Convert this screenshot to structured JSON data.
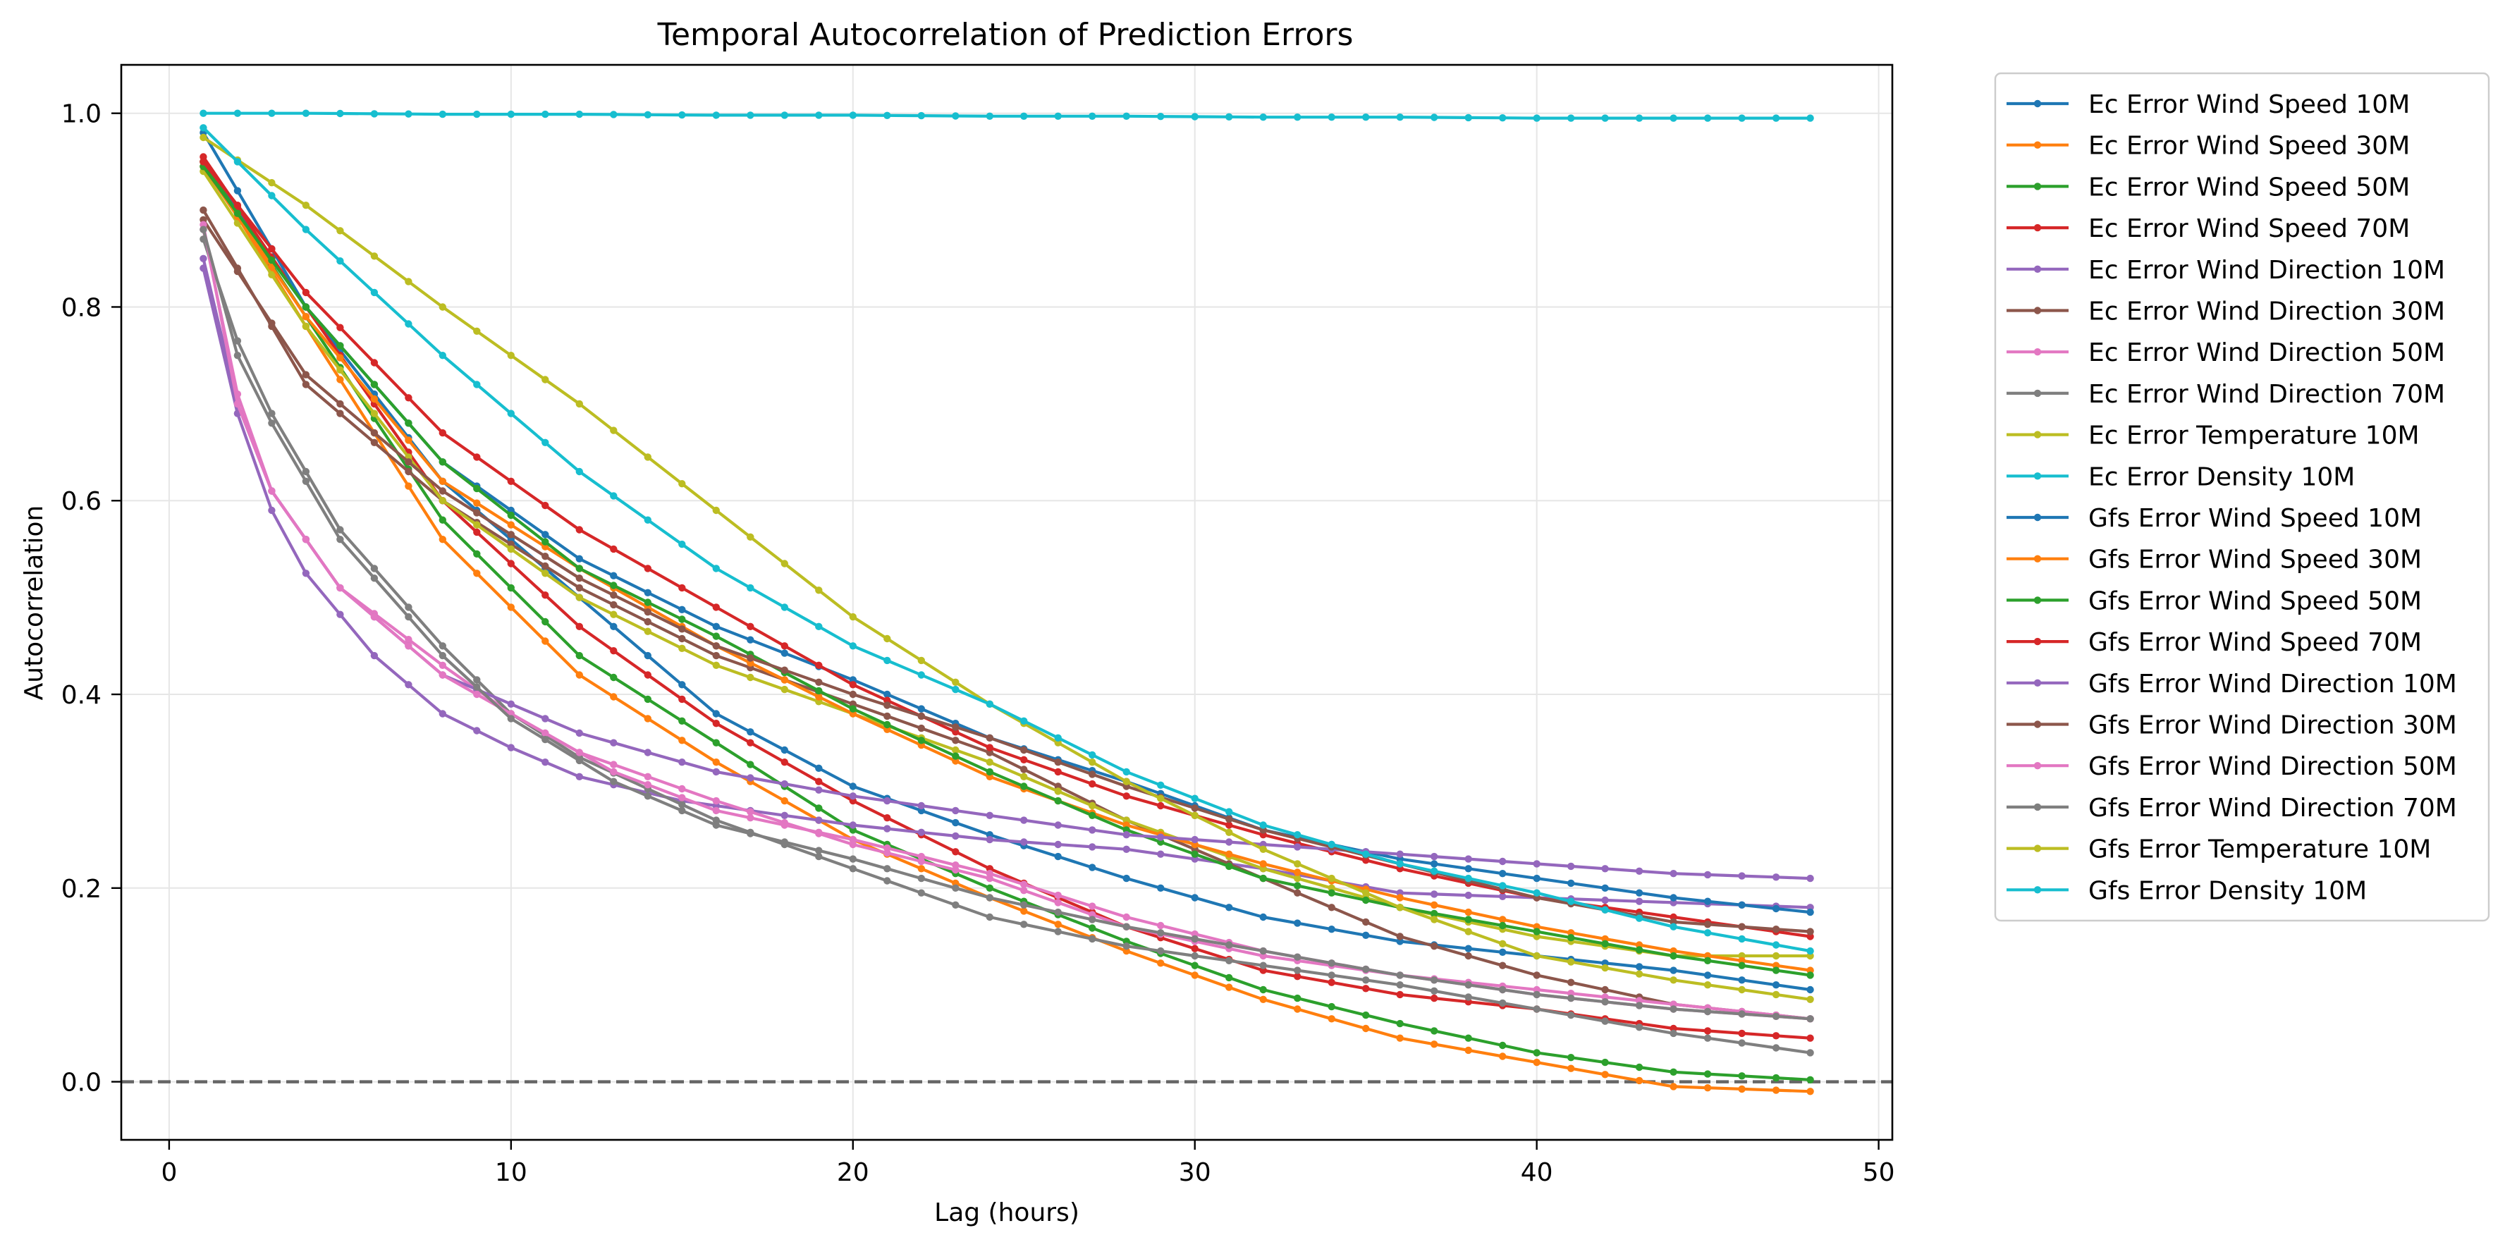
{
  "chart_data": {
    "type": "line",
    "title": "Temporal Autocorrelation of Prediction Errors",
    "xlabel": "Lag (hours)",
    "ylabel": "Autocorrelation",
    "xlim": [
      -1.4,
      50.4
    ],
    "ylim": [
      -0.06,
      1.05
    ],
    "xticks": [
      0,
      10,
      20,
      30,
      40,
      50
    ],
    "yticks": [
      0.0,
      0.2,
      0.4,
      0.6,
      0.8,
      1.0
    ],
    "xtick_labels": [
      "0",
      "10",
      "20",
      "30",
      "40",
      "50"
    ],
    "ytick_labels": [
      "0.0",
      "0.2",
      "0.4",
      "0.6",
      "0.8",
      "1.0"
    ],
    "grid": true,
    "legend_position": "outside-right",
    "reference_line": {
      "y": 0.0,
      "style": "dashed",
      "color": "#666666"
    },
    "x": [
      1,
      2,
      3,
      4,
      5,
      6,
      7,
      8,
      9,
      10,
      11,
      12,
      13,
      14,
      15,
      16,
      17,
      18,
      19,
      20,
      21,
      22,
      23,
      24,
      25,
      26,
      27,
      28,
      29,
      30,
      31,
      32,
      33,
      34,
      35,
      36,
      37,
      38,
      39,
      40,
      41,
      42,
      43,
      44,
      45,
      46,
      47,
      48
    ],
    "series": [
      {
        "name": "Ec Error Wind Speed 10M",
        "color": "#1f77b4",
        "anchors": [
          [
            1,
            0.95
          ],
          [
            4,
            0.8
          ],
          [
            8,
            0.62
          ],
          [
            12,
            0.5
          ],
          [
            16,
            0.38
          ],
          [
            20,
            0.305
          ],
          [
            24,
            0.255
          ],
          [
            28,
            0.21
          ],
          [
            32,
            0.17
          ],
          [
            36,
            0.145
          ],
          [
            40,
            0.13
          ],
          [
            44,
            0.115
          ],
          [
            48,
            0.095
          ]
        ]
      },
      {
        "name": "Ec Error Wind Speed 30M",
        "color": "#ff7f0e",
        "anchors": [
          [
            1,
            0.95
          ],
          [
            4,
            0.78
          ],
          [
            8,
            0.56
          ],
          [
            12,
            0.42
          ],
          [
            16,
            0.33
          ],
          [
            20,
            0.25
          ],
          [
            24,
            0.19
          ],
          [
            28,
            0.135
          ],
          [
            32,
            0.085
          ],
          [
            36,
            0.045
          ],
          [
            40,
            0.02
          ],
          [
            44,
            -0.005
          ],
          [
            48,
            -0.01
          ]
        ]
      },
      {
        "name": "Ec Error Wind Speed 50M",
        "color": "#2ca02c",
        "anchors": [
          [
            1,
            0.95
          ],
          [
            4,
            0.79
          ],
          [
            8,
            0.58
          ],
          [
            12,
            0.44
          ],
          [
            16,
            0.35
          ],
          [
            20,
            0.26
          ],
          [
            24,
            0.2
          ],
          [
            28,
            0.145
          ],
          [
            32,
            0.095
          ],
          [
            36,
            0.06
          ],
          [
            40,
            0.03
          ],
          [
            44,
            0.01
          ],
          [
            48,
            0.002
          ]
        ]
      },
      {
        "name": "Ec Error Wind Speed 70M",
        "color": "#d62728",
        "anchors": [
          [
            1,
            0.955
          ],
          [
            4,
            0.8
          ],
          [
            8,
            0.6
          ],
          [
            12,
            0.47
          ],
          [
            16,
            0.37
          ],
          [
            20,
            0.29
          ],
          [
            24,
            0.22
          ],
          [
            28,
            0.16
          ],
          [
            32,
            0.115
          ],
          [
            36,
            0.09
          ],
          [
            40,
            0.075
          ],
          [
            44,
            0.055
          ],
          [
            48,
            0.045
          ]
        ]
      },
      {
        "name": "Ec Error Wind Direction 10M",
        "color": "#9467bd",
        "anchors": [
          [
            1,
            0.84
          ],
          [
            2,
            0.69
          ],
          [
            3,
            0.59
          ],
          [
            4,
            0.525
          ],
          [
            6,
            0.44
          ],
          [
            8,
            0.38
          ],
          [
            10,
            0.345
          ],
          [
            12,
            0.315
          ],
          [
            15,
            0.29
          ],
          [
            20,
            0.265
          ],
          [
            24,
            0.25
          ],
          [
            28,
            0.24
          ],
          [
            32,
            0.22
          ],
          [
            36,
            0.195
          ],
          [
            40,
            0.19
          ],
          [
            44,
            0.185
          ],
          [
            48,
            0.18
          ]
        ]
      },
      {
        "name": "Ec Error Wind Direction 30M",
        "color": "#8c564b",
        "anchors": [
          [
            1,
            0.9
          ],
          [
            4,
            0.72
          ],
          [
            8,
            0.6
          ],
          [
            12,
            0.51
          ],
          [
            16,
            0.44
          ],
          [
            20,
            0.39
          ],
          [
            24,
            0.34
          ],
          [
            28,
            0.27
          ],
          [
            32,
            0.21
          ],
          [
            36,
            0.15
          ],
          [
            40,
            0.11
          ],
          [
            44,
            0.08
          ],
          [
            48,
            0.065
          ]
        ]
      },
      {
        "name": "Ec Error Wind Direction 50M",
        "color": "#e377c2",
        "anchors": [
          [
            1,
            0.88
          ],
          [
            2,
            0.71
          ],
          [
            3,
            0.61
          ],
          [
            5,
            0.51
          ],
          [
            8,
            0.43
          ],
          [
            10,
            0.38
          ],
          [
            12,
            0.34
          ],
          [
            16,
            0.29
          ],
          [
            20,
            0.245
          ],
          [
            24,
            0.21
          ],
          [
            28,
            0.16
          ],
          [
            32,
            0.13
          ],
          [
            36,
            0.11
          ],
          [
            40,
            0.095
          ],
          [
            44,
            0.08
          ],
          [
            48,
            0.065
          ]
        ]
      },
      {
        "name": "Ec Error Wind Direction 70M",
        "color": "#7f7f7f",
        "anchors": [
          [
            1,
            0.87
          ],
          [
            2,
            0.765
          ],
          [
            3,
            0.69
          ],
          [
            5,
            0.57
          ],
          [
            8,
            0.45
          ],
          [
            10,
            0.38
          ],
          [
            12,
            0.335
          ],
          [
            16,
            0.27
          ],
          [
            20,
            0.22
          ],
          [
            24,
            0.17
          ],
          [
            28,
            0.14
          ],
          [
            32,
            0.12
          ],
          [
            36,
            0.1
          ],
          [
            40,
            0.075
          ],
          [
            44,
            0.05
          ],
          [
            48,
            0.03
          ]
        ]
      },
      {
        "name": "Ec Error Temperature 10M",
        "color": "#bcbd22",
        "anchors": [
          [
            1,
            0.94
          ],
          [
            4,
            0.78
          ],
          [
            8,
            0.6
          ],
          [
            12,
            0.5
          ],
          [
            16,
            0.43
          ],
          [
            20,
            0.38
          ],
          [
            24,
            0.33
          ],
          [
            28,
            0.27
          ],
          [
            32,
            0.22
          ],
          [
            36,
            0.18
          ],
          [
            40,
            0.15
          ],
          [
            44,
            0.13
          ],
          [
            48,
            0.13
          ]
        ]
      },
      {
        "name": "Ec Error Density 10M",
        "color": "#17becf",
        "anchors": [
          [
            1,
            1.0
          ],
          [
            4,
            1.0
          ],
          [
            8,
            0.999
          ],
          [
            12,
            0.999
          ],
          [
            16,
            0.998
          ],
          [
            20,
            0.998
          ],
          [
            24,
            0.997
          ],
          [
            28,
            0.997
          ],
          [
            32,
            0.996
          ],
          [
            36,
            0.996
          ],
          [
            40,
            0.995
          ],
          [
            44,
            0.995
          ],
          [
            48,
            0.995
          ]
        ]
      },
      {
        "name": "Gfs Error Wind Speed 10M",
        "color": "#1f77b4",
        "anchors": [
          [
            1,
            0.98
          ],
          [
            4,
            0.8
          ],
          [
            8,
            0.64
          ],
          [
            12,
            0.54
          ],
          [
            16,
            0.47
          ],
          [
            20,
            0.415
          ],
          [
            24,
            0.355
          ],
          [
            28,
            0.31
          ],
          [
            32,
            0.26
          ],
          [
            36,
            0.23
          ],
          [
            40,
            0.21
          ],
          [
            44,
            0.19
          ],
          [
            48,
            0.175
          ]
        ]
      },
      {
        "name": "Gfs Error Wind Speed 30M",
        "color": "#ff7f0e",
        "anchors": [
          [
            1,
            0.945
          ],
          [
            4,
            0.79
          ],
          [
            8,
            0.62
          ],
          [
            12,
            0.53
          ],
          [
            16,
            0.45
          ],
          [
            20,
            0.38
          ],
          [
            24,
            0.315
          ],
          [
            28,
            0.265
          ],
          [
            32,
            0.225
          ],
          [
            36,
            0.19
          ],
          [
            40,
            0.16
          ],
          [
            44,
            0.135
          ],
          [
            48,
            0.115
          ]
        ]
      },
      {
        "name": "Gfs Error Wind Speed 50M",
        "color": "#2ca02c",
        "anchors": [
          [
            1,
            0.945
          ],
          [
            4,
            0.8
          ],
          [
            8,
            0.64
          ],
          [
            12,
            0.53
          ],
          [
            16,
            0.46
          ],
          [
            20,
            0.385
          ],
          [
            24,
            0.32
          ],
          [
            28,
            0.26
          ],
          [
            32,
            0.21
          ],
          [
            36,
            0.18
          ],
          [
            40,
            0.155
          ],
          [
            44,
            0.13
          ],
          [
            48,
            0.11
          ]
        ]
      },
      {
        "name": "Gfs Error Wind Speed 70M",
        "color": "#d62728",
        "anchors": [
          [
            1,
            0.95
          ],
          [
            4,
            0.815
          ],
          [
            8,
            0.67
          ],
          [
            12,
            0.57
          ],
          [
            16,
            0.49
          ],
          [
            20,
            0.41
          ],
          [
            24,
            0.345
          ],
          [
            28,
            0.295
          ],
          [
            32,
            0.255
          ],
          [
            36,
            0.22
          ],
          [
            40,
            0.19
          ],
          [
            44,
            0.17
          ],
          [
            48,
            0.15
          ]
        ]
      },
      {
        "name": "Gfs Error Wind Direction 10M",
        "color": "#9467bd",
        "anchors": [
          [
            1,
            0.85
          ],
          [
            2,
            0.7
          ],
          [
            3,
            0.61
          ],
          [
            5,
            0.51
          ],
          [
            8,
            0.42
          ],
          [
            12,
            0.36
          ],
          [
            16,
            0.32
          ],
          [
            20,
            0.295
          ],
          [
            24,
            0.275
          ],
          [
            28,
            0.255
          ],
          [
            32,
            0.245
          ],
          [
            36,
            0.235
          ],
          [
            40,
            0.225
          ],
          [
            44,
            0.215
          ],
          [
            48,
            0.21
          ]
        ]
      },
      {
        "name": "Gfs Error Wind Direction 30M",
        "color": "#8c564b",
        "anchors": [
          [
            1,
            0.89
          ],
          [
            4,
            0.73
          ],
          [
            8,
            0.61
          ],
          [
            12,
            0.52
          ],
          [
            16,
            0.45
          ],
          [
            20,
            0.4
          ],
          [
            24,
            0.355
          ],
          [
            28,
            0.305
          ],
          [
            32,
            0.26
          ],
          [
            36,
            0.225
          ],
          [
            40,
            0.19
          ],
          [
            44,
            0.165
          ],
          [
            48,
            0.155
          ]
        ]
      },
      {
        "name": "Gfs Error Wind Direction 50M",
        "color": "#e377c2",
        "anchors": [
          [
            1,
            0.885
          ],
          [
            2,
            0.7
          ],
          [
            3,
            0.61
          ],
          [
            5,
            0.51
          ],
          [
            8,
            0.42
          ],
          [
            10,
            0.38
          ],
          [
            13,
            0.32
          ],
          [
            16,
            0.28
          ],
          [
            20,
            0.25
          ],
          [
            24,
            0.215
          ],
          [
            28,
            0.17
          ],
          [
            32,
            0.135
          ],
          [
            36,
            0.11
          ],
          [
            40,
            0.09
          ],
          [
            44,
            0.075
          ],
          [
            48,
            0.065
          ]
        ]
      },
      {
        "name": "Gfs Error Wind Direction 70M",
        "color": "#7f7f7f",
        "anchors": [
          [
            1,
            0.88
          ],
          [
            2,
            0.75
          ],
          [
            3,
            0.68
          ],
          [
            5,
            0.56
          ],
          [
            8,
            0.44
          ],
          [
            10,
            0.375
          ],
          [
            13,
            0.31
          ],
          [
            16,
            0.265
          ],
          [
            20,
            0.23
          ],
          [
            24,
            0.19
          ],
          [
            28,
            0.16
          ],
          [
            32,
            0.135
          ],
          [
            36,
            0.11
          ],
          [
            40,
            0.09
          ],
          [
            44,
            0.075
          ],
          [
            48,
            0.065
          ]
        ]
      },
      {
        "name": "Gfs Error Temperature 10M",
        "color": "#bcbd22",
        "anchors": [
          [
            1,
            0.975
          ],
          [
            4,
            0.905
          ],
          [
            8,
            0.8
          ],
          [
            12,
            0.7
          ],
          [
            16,
            0.59
          ],
          [
            20,
            0.48
          ],
          [
            24,
            0.39
          ],
          [
            28,
            0.31
          ],
          [
            32,
            0.24
          ],
          [
            36,
            0.18
          ],
          [
            40,
            0.13
          ],
          [
            44,
            0.105
          ],
          [
            48,
            0.085
          ]
        ]
      },
      {
        "name": "Gfs Error Density 10M",
        "color": "#17becf",
        "anchors": [
          [
            1,
            0.985
          ],
          [
            4,
            0.88
          ],
          [
            8,
            0.75
          ],
          [
            12,
            0.63
          ],
          [
            16,
            0.53
          ],
          [
            20,
            0.45
          ],
          [
            24,
            0.39
          ],
          [
            28,
            0.32
          ],
          [
            32,
            0.265
          ],
          [
            36,
            0.225
          ],
          [
            40,
            0.195
          ],
          [
            44,
            0.16
          ],
          [
            48,
            0.135
          ]
        ]
      }
    ]
  }
}
